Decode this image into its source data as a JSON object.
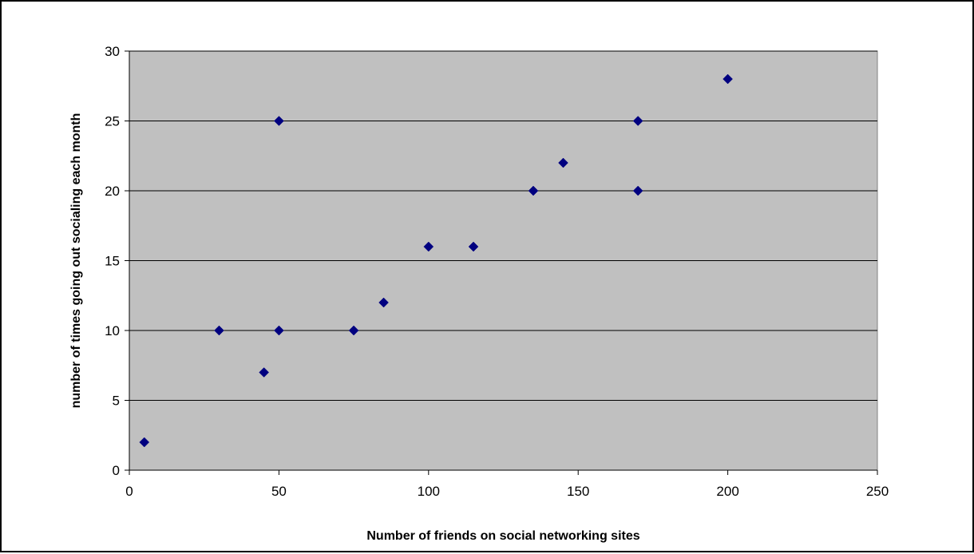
{
  "chart_data": {
    "type": "scatter",
    "title": "",
    "xlabel": "Number of friends on social networking sites",
    "ylabel": "number of times going out socialing each month",
    "xlim": [
      0,
      250
    ],
    "ylim": [
      0,
      30
    ],
    "x_ticks": [
      0,
      50,
      100,
      150,
      200,
      250
    ],
    "y_ticks": [
      0,
      5,
      10,
      15,
      20,
      25,
      30
    ],
    "grid": "horizontal major gridlines",
    "legend": "none",
    "colors": {
      "plot_background": "#c0c0c0",
      "marker": "#000080",
      "gridline": "#000000"
    },
    "marker_shape": "diamond",
    "series": [
      {
        "points": [
          {
            "x": 5,
            "y": 2
          },
          {
            "x": 30,
            "y": 10
          },
          {
            "x": 45,
            "y": 7
          },
          {
            "x": 50,
            "y": 10
          },
          {
            "x": 50,
            "y": 25
          },
          {
            "x": 75,
            "y": 10
          },
          {
            "x": 85,
            "y": 12
          },
          {
            "x": 100,
            "y": 16
          },
          {
            "x": 115,
            "y": 16
          },
          {
            "x": 135,
            "y": 20
          },
          {
            "x": 145,
            "y": 22
          },
          {
            "x": 170,
            "y": 25
          },
          {
            "x": 170,
            "y": 20
          },
          {
            "x": 200,
            "y": 28
          }
        ]
      }
    ]
  }
}
